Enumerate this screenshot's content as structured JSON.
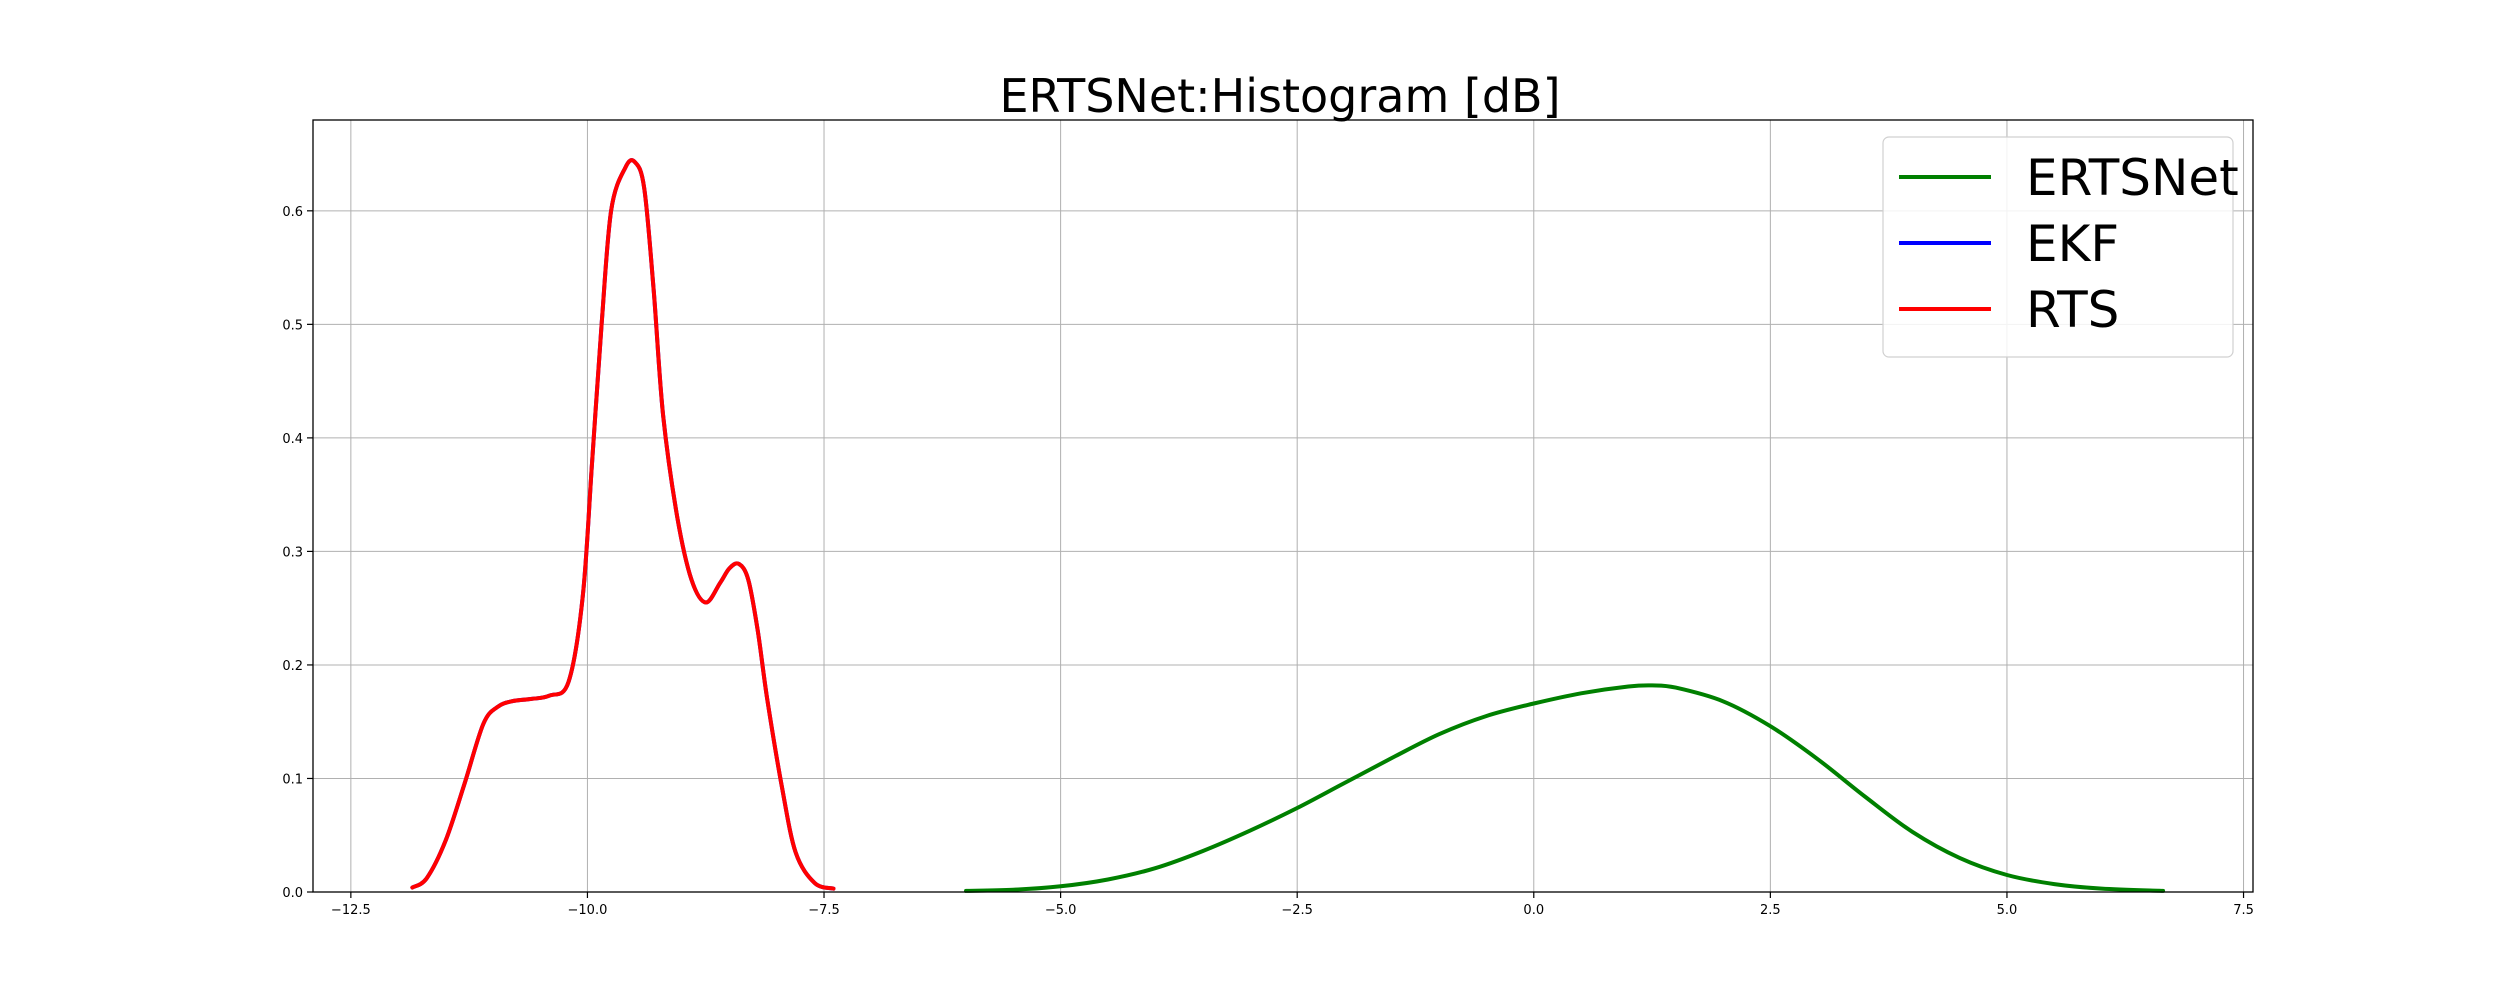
{
  "chart_data": {
    "type": "line",
    "title": "ERTSNet:Histogram [dB]",
    "xlabel": "",
    "ylabel": "",
    "xlim": [
      -12.9,
      7.6
    ],
    "ylim": [
      0,
      0.68
    ],
    "grid": true,
    "legend_position": "top-right",
    "x_ticks": [
      -12.5,
      -10.0,
      -7.5,
      -5.0,
      -2.5,
      0.0,
      2.5,
      5.0,
      7.5
    ],
    "x_tick_labels": [
      "−12.5",
      "−10.0",
      "−7.5",
      "−5.0",
      "−2.5",
      "0.0",
      "2.5",
      "5.0",
      "7.5"
    ],
    "y_ticks": [
      0.0,
      0.1,
      0.2,
      0.3,
      0.4,
      0.5,
      0.6
    ],
    "y_tick_labels": [
      "0.0",
      "0.1",
      "0.2",
      "0.3",
      "0.4",
      "0.5",
      "0.6"
    ],
    "series": [
      {
        "name": "ERTSNet",
        "color": "#008000",
        "x": [
          -6.0,
          -5.5,
          -5.0,
          -4.5,
          -4.0,
          -3.5,
          -3.0,
          -2.5,
          -2.0,
          -1.5,
          -1.0,
          -0.5,
          0.0,
          0.5,
          1.0,
          1.25,
          1.5,
          2.0,
          2.5,
          3.0,
          3.5,
          4.0,
          4.5,
          5.0,
          5.5,
          6.0,
          6.65
        ],
        "y": [
          0.001,
          0.002,
          0.005,
          0.011,
          0.021,
          0.036,
          0.054,
          0.074,
          0.096,
          0.118,
          0.139,
          0.155,
          0.166,
          0.175,
          0.181,
          0.182,
          0.18,
          0.168,
          0.146,
          0.117,
          0.084,
          0.053,
          0.03,
          0.015,
          0.007,
          0.003,
          0.001
        ]
      },
      {
        "name": "EKF",
        "color": "#0000ff",
        "x": [
          -11.85,
          -11.7,
          -11.5,
          -11.3,
          -11.1,
          -10.95,
          -10.8,
          -10.6,
          -10.4,
          -10.2,
          -10.05,
          -9.95,
          -9.85,
          -9.75,
          -9.6,
          -9.5,
          -9.4,
          -9.3,
          -9.2,
          -9.05,
          -8.9,
          -8.75,
          -8.6,
          -8.5,
          -8.4,
          -8.3,
          -8.2,
          -8.1,
          -7.95,
          -7.8,
          -7.6,
          -7.4
        ],
        "y": [
          0.004,
          0.012,
          0.045,
          0.095,
          0.148,
          0.163,
          0.168,
          0.17,
          0.173,
          0.185,
          0.26,
          0.38,
          0.5,
          0.6,
          0.638,
          0.643,
          0.62,
          0.53,
          0.42,
          0.33,
          0.275,
          0.255,
          0.272,
          0.285,
          0.289,
          0.275,
          0.23,
          0.17,
          0.095,
          0.035,
          0.008,
          0.003
        ]
      },
      {
        "name": "RTS",
        "color": "#ff0000",
        "x": [
          -11.85,
          -11.7,
          -11.5,
          -11.3,
          -11.1,
          -10.95,
          -10.8,
          -10.6,
          -10.4,
          -10.2,
          -10.05,
          -9.95,
          -9.85,
          -9.75,
          -9.6,
          -9.5,
          -9.4,
          -9.3,
          -9.2,
          -9.05,
          -8.9,
          -8.75,
          -8.6,
          -8.5,
          -8.4,
          -8.3,
          -8.2,
          -8.1,
          -7.95,
          -7.8,
          -7.6,
          -7.4
        ],
        "y": [
          0.004,
          0.012,
          0.045,
          0.095,
          0.148,
          0.163,
          0.168,
          0.17,
          0.173,
          0.185,
          0.26,
          0.38,
          0.5,
          0.6,
          0.638,
          0.643,
          0.62,
          0.53,
          0.42,
          0.33,
          0.275,
          0.255,
          0.272,
          0.285,
          0.289,
          0.275,
          0.23,
          0.17,
          0.095,
          0.035,
          0.008,
          0.003
        ]
      }
    ]
  }
}
